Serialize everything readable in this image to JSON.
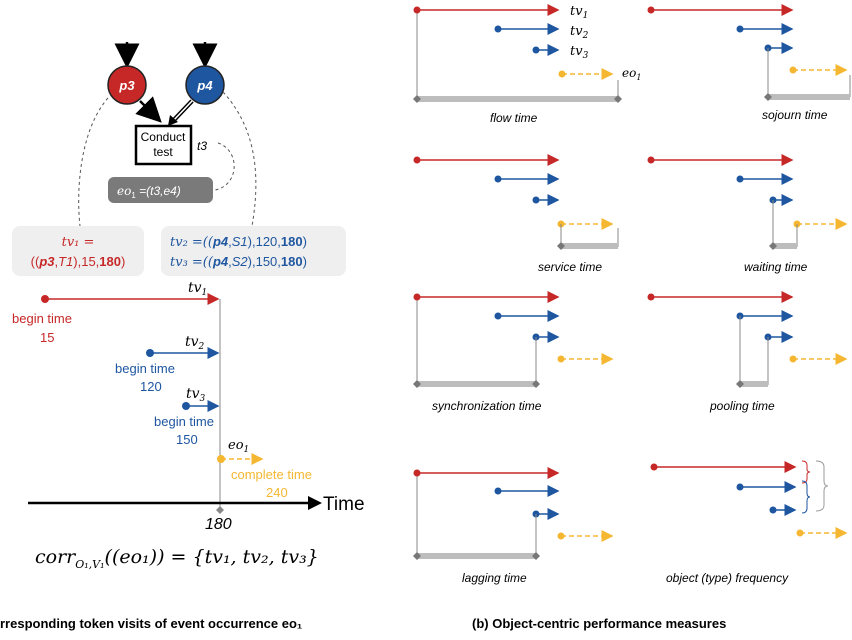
{
  "left": {
    "places": [
      {
        "id": "p3",
        "label": "p3",
        "color": "#c62828"
      },
      {
        "id": "p4",
        "label": "p4",
        "color": "#1e56a0"
      }
    ],
    "transition": {
      "label_line1": "Conduct",
      "label_line2": "test",
      "name": "t3"
    },
    "event_box": {
      "prefix": "eo",
      "sub": "1",
      "text": " =(t3,e4)"
    },
    "tv1_box": {
      "line1": "tv₁ =",
      "line2_a": "((",
      "line2_b": "p3",
      "line2_c": ",",
      "line2_d": "T1",
      "line2_e": "),15,",
      "line2_f": "180",
      "line2_g": ")"
    },
    "tv23_box": {
      "l1_a": "tv₂ =((",
      "l1_b": "p4",
      "l1_c": ",",
      "l1_d": "S1",
      "l1_e": "),120,",
      "l1_f": "180",
      "l1_g": ")",
      "l2_a": "tv₃ =((",
      "l2_b": "p4",
      "l2_c": ",",
      "l2_d": "S2",
      "l2_e": "),150,",
      "l2_f": "180",
      "l2_g": ")"
    },
    "timeline": {
      "tv1": {
        "name": "tv",
        "sub": "1",
        "caption": "begin time",
        "value": "15"
      },
      "tv2": {
        "name": "tv",
        "sub": "2",
        "caption": "begin time",
        "value": "120"
      },
      "tv3": {
        "name": "tv",
        "sub": "3",
        "caption": "begin time",
        "value": "150"
      },
      "eo1": {
        "name": "eo",
        "sub": "1",
        "caption": "complete time",
        "value": "240"
      },
      "axis_label": "Time",
      "axis_tick": "180"
    },
    "formula": "corr",
    "formula_sub": "O₁,V₁",
    "formula_rest": "((eo₁)) = {tv₁, tv₂, tv₃}",
    "caption": "rresponding token visits of event occurrence eo₁"
  },
  "right": {
    "panels": {
      "flow": "flow time",
      "sojourn": "sojourn time",
      "service": "service time",
      "waiting": "waiting time",
      "sync": "synchronization time",
      "pooling": "pooling time",
      "lagging": "lagging time",
      "frequency": "object (type) frequency"
    },
    "flow_labels": {
      "tv1": "tv",
      "tv1_sub": "1",
      "tv2": "tv",
      "tv2_sub": "2",
      "tv3": "tv",
      "tv3_sub": "3",
      "eo": "eo",
      "eo_sub": "1"
    },
    "caption": "(b) Object-centric performance measures"
  },
  "colors": {
    "red": "#c62828",
    "blue": "#1e56a0",
    "yellow": "#f5b731",
    "grey": "#9e9e9e",
    "box": "#efefef",
    "dark_box": "#7a7a7a"
  }
}
